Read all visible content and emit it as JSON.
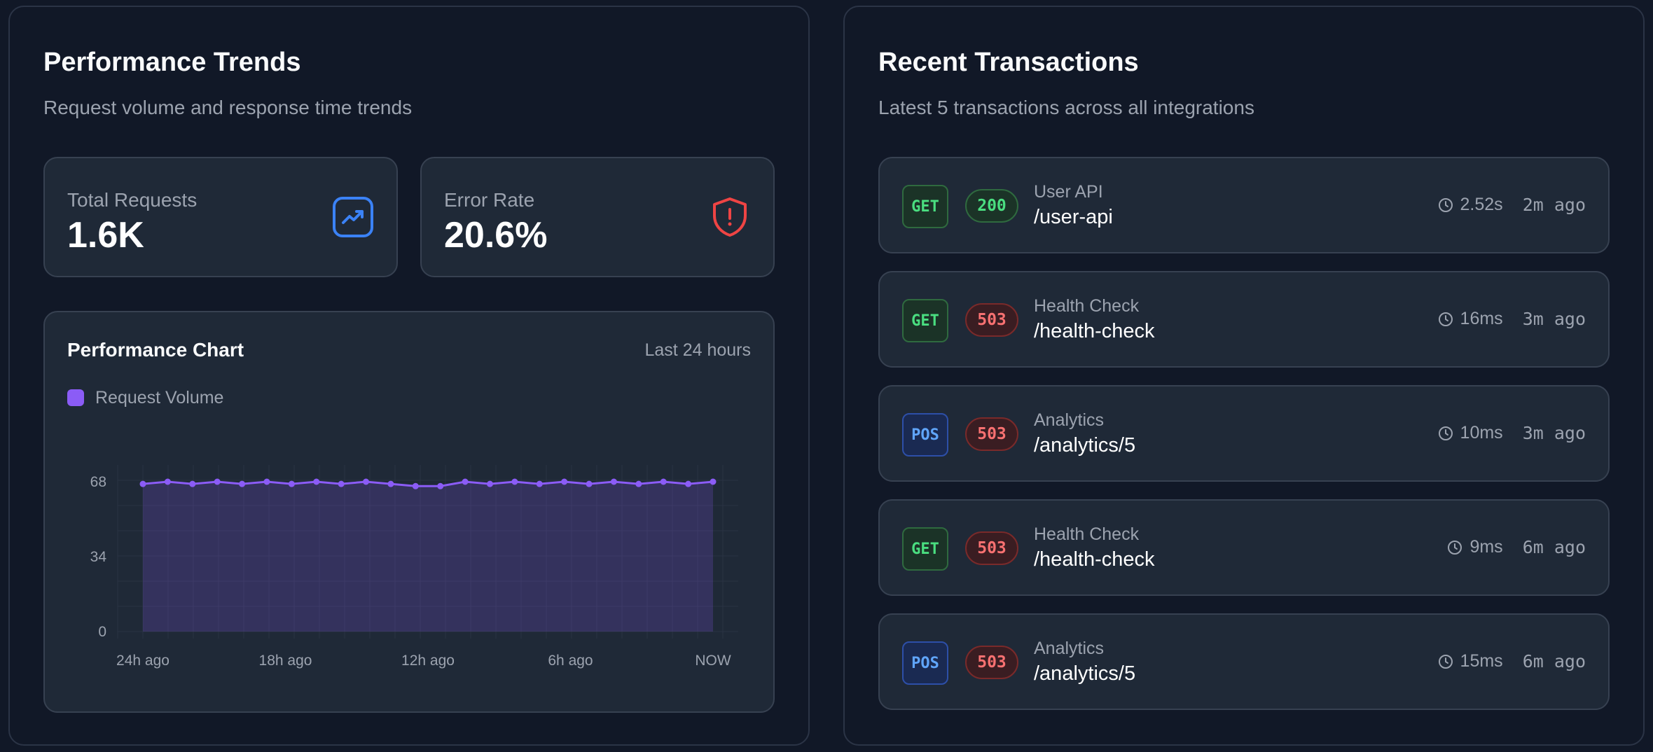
{
  "performance": {
    "title": "Performance Trends",
    "subtitle": "Request volume and response time trends",
    "stats": {
      "total_requests": {
        "label": "Total Requests",
        "value": "1.6K",
        "icon": "trending-up-icon",
        "color": "#3b82f6"
      },
      "error_rate": {
        "label": "Error Rate",
        "value": "20.6%",
        "icon": "shield-alert-icon",
        "color": "#ef4444"
      }
    },
    "chart": {
      "title": "Performance Chart",
      "range_label": "Last 24 hours",
      "legend": "Request Volume"
    }
  },
  "chart_data": {
    "type": "area",
    "title": "Performance Chart",
    "series": [
      {
        "name": "Request Volume",
        "color": "#8b5cf6",
        "values": [
          67,
          68,
          67,
          68,
          67,
          68,
          67,
          68,
          67,
          68,
          67,
          66,
          66,
          68,
          67,
          68,
          67,
          68,
          67,
          68,
          67,
          68,
          67,
          68
        ]
      }
    ],
    "y_ticks": [
      "68",
      "34",
      "0"
    ],
    "y_tick_values": [
      68,
      34,
      0
    ],
    "ylim": [
      0,
      68
    ],
    "x_tick_labels": [
      "24h ago",
      "18h ago",
      "12h ago",
      "6h ago",
      "NOW"
    ],
    "grid": true,
    "legend_position": "top-left"
  },
  "transactions": {
    "title": "Recent Transactions",
    "subtitle": "Latest 5 transactions across all integrations",
    "items": [
      {
        "method": "GET",
        "status": "200",
        "name": "User API",
        "path": "/user-api",
        "duration": "2.52s",
        "ago": "2m ago"
      },
      {
        "method": "GET",
        "status": "503",
        "name": "Health Check",
        "path": "/health-check",
        "duration": "16ms",
        "ago": "3m ago"
      },
      {
        "method": "POS",
        "status": "503",
        "name": "Analytics",
        "path": "/analytics/5",
        "duration": "10ms",
        "ago": "3m ago"
      },
      {
        "method": "GET",
        "status": "503",
        "name": "Health Check",
        "path": "/health-check",
        "duration": "9ms",
        "ago": "6m ago"
      },
      {
        "method": "POS",
        "status": "503",
        "name": "Analytics",
        "path": "/analytics/5",
        "duration": "15ms",
        "ago": "6m ago"
      }
    ]
  }
}
